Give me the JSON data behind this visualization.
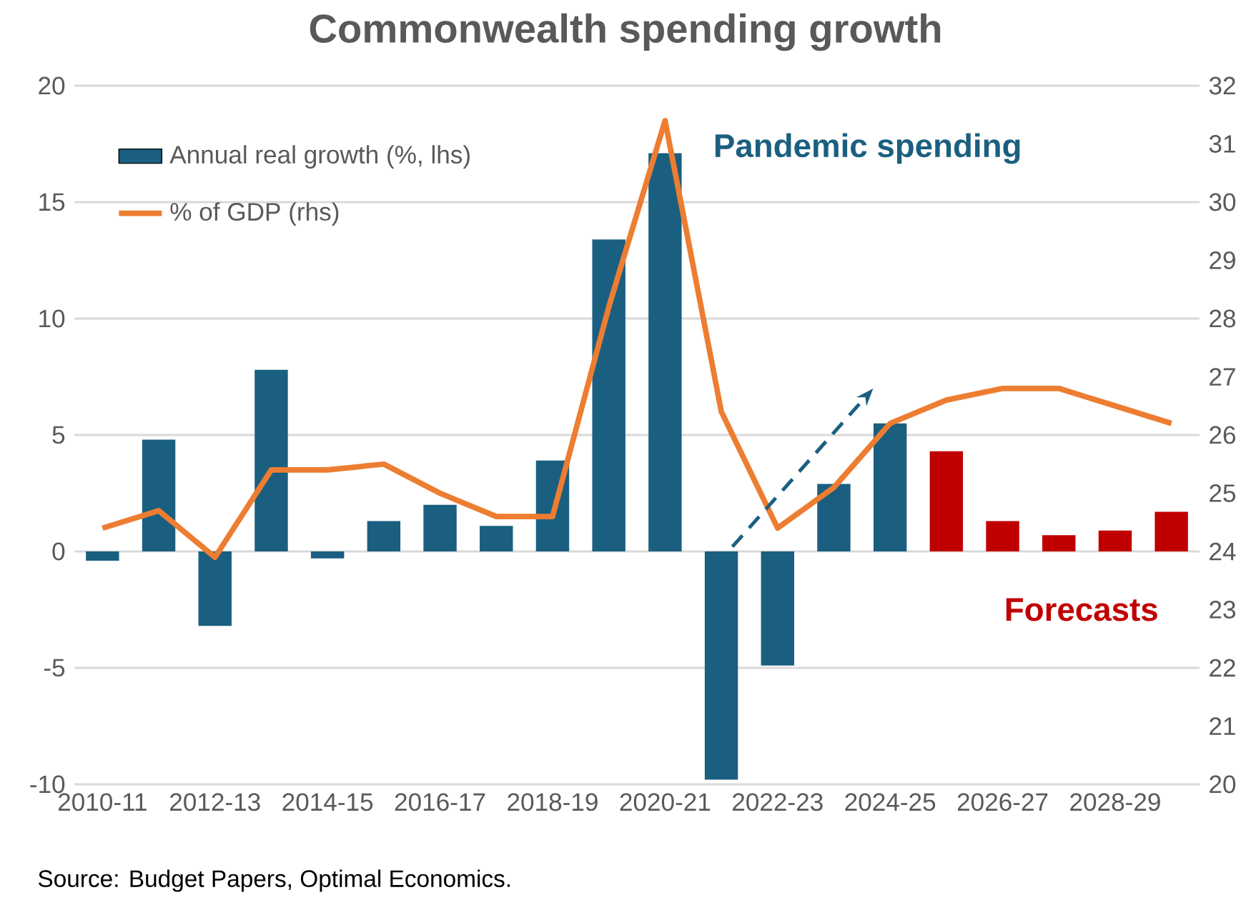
{
  "chart_data": {
    "type": "bar",
    "title": "Commonwealth spending growth",
    "categories": [
      "2010-11",
      null,
      "2012-13",
      null,
      "2014-15",
      null,
      "2016-17",
      null,
      "2018-19",
      null,
      "2020-21",
      null,
      "2022-23",
      null,
      "2024-25",
      null,
      "2026-27",
      null,
      "2028-29",
      null
    ],
    "series": [
      {
        "name": "Annual real growth (%, lhs)",
        "colors": [
          "#1a5f80",
          "#1a5f80",
          "#1a5f80",
          "#1a5f80",
          "#1a5f80",
          "#1a5f80",
          "#1a5f80",
          "#1a5f80",
          "#1a5f80",
          "#1a5f80",
          "#1a5f80",
          "#1a5f80",
          "#1a5f80",
          "#1a5f80",
          "#1a5f80",
          "#c00000",
          "#c00000",
          "#c00000",
          "#c00000",
          "#c00000"
        ],
        "values": [
          -0.4,
          4.8,
          -3.2,
          7.8,
          -0.3,
          1.3,
          2.0,
          1.1,
          3.9,
          13.4,
          17.1,
          -9.8,
          -4.9,
          2.9,
          5.5,
          4.3,
          1.3,
          0.7,
          0.9,
          1.7
        ]
      },
      {
        "name": "% of GDP (rhs)",
        "type": "line",
        "axis": "y2",
        "color": "#ed7d31",
        "values": [
          24.4,
          24.7,
          23.9,
          25.4,
          25.4,
          25.5,
          25.0,
          24.6,
          24.6,
          28.2,
          31.4,
          26.4,
          24.4,
          25.1,
          26.2,
          26.6,
          26.8,
          26.8,
          26.5,
          26.2
        ]
      }
    ],
    "ylim": [
      -10,
      20
    ],
    "yticks": [
      -10,
      -5,
      0,
      5,
      10,
      15,
      20
    ],
    "y2lim": [
      20,
      32
    ],
    "y2ticks": [
      20,
      21,
      22,
      23,
      24,
      25,
      26,
      27,
      28,
      29,
      30,
      31,
      32
    ],
    "grid": "y",
    "legend": "top left",
    "annotations": [
      "Pandemic spending",
      "Forecasts",
      "Source: Budget Papers, Optimal Economics."
    ]
  }
}
